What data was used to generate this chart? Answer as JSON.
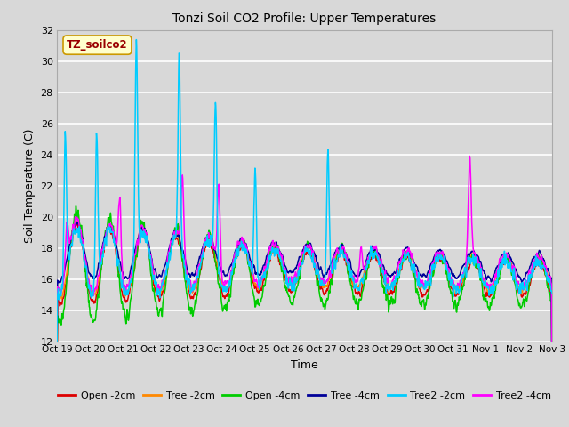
{
  "title": "Tonzi Soil CO2 Profile: Upper Temperatures",
  "xlabel": "Time",
  "ylabel": "Soil Temperature (C)",
  "ylim": [
    12,
    32
  ],
  "yticks": [
    12,
    14,
    16,
    18,
    20,
    22,
    24,
    26,
    28,
    30,
    32
  ],
  "xtick_labels": [
    "Oct 19",
    "Oct 20",
    "Oct 21",
    "Oct 22",
    "Oct 23",
    "Oct 24",
    "Oct 25",
    "Oct 26",
    "Oct 27",
    "Oct 28",
    "Oct 29",
    "Oct 30",
    "Oct 31",
    "Nov 1",
    "Nov 2",
    "Nov 3"
  ],
  "watermark_text": "TZ_soilco2",
  "watermark_color": "#990000",
  "watermark_bg": "#ffffcc",
  "watermark_edge": "#cc9900",
  "background_color": "#d8d8d8",
  "grid_color": "#ffffff",
  "series": [
    {
      "label": "Open -2cm",
      "color": "#dd0000"
    },
    {
      "label": "Tree -2cm",
      "color": "#ff8800"
    },
    {
      "label": "Open -4cm",
      "color": "#00cc00"
    },
    {
      "label": "Tree -4cm",
      "color": "#000099"
    },
    {
      "label": "Tree2 -2cm",
      "color": "#00ccff"
    },
    {
      "label": "Tree2 -4cm",
      "color": "#ff00ff"
    }
  ],
  "n_days": 15,
  "pts_per_day": 96,
  "figsize": [
    6.4,
    4.8
  ],
  "dpi": 100
}
